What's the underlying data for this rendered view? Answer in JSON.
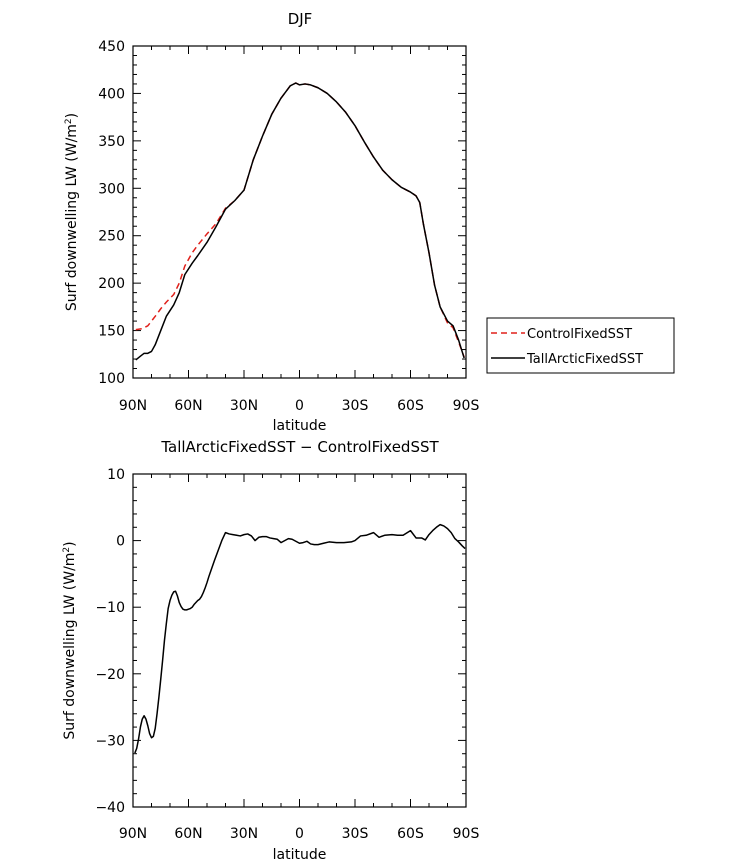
{
  "chart_data": [
    {
      "type": "line",
      "title": "DJF",
      "xlabel": "latitude",
      "ylabel": "Surf downwelling LW (W/m²)",
      "xlim": [
        90,
        -90
      ],
      "ylim": [
        100,
        450
      ],
      "xticks": [
        {
          "value": 90,
          "label": "90N"
        },
        {
          "value": 60,
          "label": "60N"
        },
        {
          "value": 30,
          "label": "30N"
        },
        {
          "value": 0,
          "label": "0"
        },
        {
          "value": -30,
          "label": "30S"
        },
        {
          "value": -60,
          "label": "60S"
        },
        {
          "value": -90,
          "label": "90S"
        }
      ],
      "yticks": [
        100,
        150,
        200,
        250,
        300,
        350,
        400,
        450
      ],
      "legend": "right",
      "series": [
        {
          "name": "ControlFixedSST",
          "color": "#e0201a",
          "dash": "dashed",
          "x": [
            88.5,
            85,
            82,
            78,
            75,
            72,
            68,
            65,
            62,
            58,
            55,
            50,
            45,
            40,
            35,
            30,
            25,
            20,
            15,
            10,
            5,
            2,
            0,
            -3,
            -6,
            -10,
            -15,
            -20,
            -25,
            -30,
            -35,
            -40,
            -45,
            -50,
            -55,
            -60,
            -63,
            -65,
            -67,
            -70,
            -73,
            -76,
            -80,
            -83,
            -86,
            -89
          ],
          "y": [
            151,
            152,
            155,
            165,
            173,
            180,
            188,
            200,
            218,
            232,
            240,
            252,
            263,
            279,
            287,
            298,
            330,
            355,
            378,
            395,
            408,
            411,
            409,
            410,
            409,
            406,
            400,
            391,
            380,
            366,
            349,
            333,
            319,
            309,
            301,
            296,
            292,
            285,
            262,
            232,
            198,
            175,
            158,
            153,
            138,
            122
          ]
        },
        {
          "name": "TallArcticFixedSST",
          "color": "#000000",
          "dash": "solid",
          "x": [
            88.5,
            86,
            84,
            82,
            80,
            78,
            75,
            72,
            68,
            65,
            62,
            58,
            55,
            50,
            45,
            40,
            35,
            30,
            25,
            20,
            15,
            10,
            5,
            2,
            0,
            -3,
            -6,
            -10,
            -15,
            -20,
            -25,
            -30,
            -35,
            -40,
            -45,
            -50,
            -55,
            -60,
            -63,
            -65,
            -67,
            -70,
            -73,
            -76,
            -80,
            -83,
            -86,
            -89
          ],
          "y": [
            119,
            123,
            126,
            126,
            128,
            135,
            150,
            165,
            177,
            190,
            209,
            221,
            229,
            243,
            260,
            278,
            287,
            298,
            330,
            355,
            378,
            395,
            408,
            411,
            409,
            410,
            409,
            406,
            400,
            391,
            380,
            366,
            349,
            333,
            319,
            309,
            301,
            296,
            292,
            285,
            262,
            232,
            198,
            175,
            160,
            155,
            140,
            121
          ]
        }
      ]
    },
    {
      "type": "line",
      "title": "TallArcticFixedSST − ControlFixedSST",
      "xlabel": "latitude",
      "ylabel": "Surf downwelling LW (W/m²)",
      "xlim": [
        90,
        -90
      ],
      "ylim": [
        -40,
        10
      ],
      "xticks": [
        {
          "value": 90,
          "label": "90N"
        },
        {
          "value": 60,
          "label": "60N"
        },
        {
          "value": 30,
          "label": "30N"
        },
        {
          "value": 0,
          "label": "0"
        },
        {
          "value": -30,
          "label": "30S"
        },
        {
          "value": -60,
          "label": "60S"
        },
        {
          "value": -90,
          "label": "90S"
        }
      ],
      "yticks": [
        -40,
        -30,
        -20,
        -10,
        0,
        10
      ],
      "series": [
        {
          "color": "#000000",
          "dash": "solid",
          "x": [
            89,
            88,
            87,
            86,
            85,
            84,
            83,
            82,
            81,
            80,
            79,
            78,
            77,
            76,
            75,
            74,
            73,
            72,
            71,
            70,
            69,
            68,
            67,
            66,
            65,
            64,
            63,
            62,
            61,
            60,
            59,
            58,
            57,
            56,
            55,
            54,
            53,
            52,
            51,
            50,
            49,
            48,
            46,
            44,
            42,
            40,
            38,
            36,
            34,
            32,
            30,
            28,
            26,
            24,
            22,
            20,
            18,
            16,
            14,
            12,
            10,
            8,
            6,
            4,
            2,
            0,
            -2,
            -4,
            -6,
            -8,
            -10,
            -13,
            -16,
            -20,
            -24,
            -28,
            -30,
            -33,
            -36,
            -40,
            -43,
            -46,
            -50,
            -53,
            -56,
            -60,
            -63,
            -66,
            -68,
            -70,
            -72,
            -74,
            -76,
            -78,
            -80,
            -82,
            -84,
            -86,
            -88,
            -89.5
          ],
          "y": [
            -31.9,
            -31.2,
            -29.8,
            -28.0,
            -26.8,
            -26.3,
            -26.8,
            -27.8,
            -29.0,
            -29.6,
            -29.4,
            -28.2,
            -26.0,
            -23.5,
            -20.8,
            -18.0,
            -15.0,
            -12.5,
            -10.2,
            -9.0,
            -8.2,
            -7.7,
            -7.6,
            -8.3,
            -9.3,
            -9.9,
            -10.3,
            -10.4,
            -10.4,
            -10.3,
            -10.2,
            -10.0,
            -9.6,
            -9.3,
            -9.0,
            -8.8,
            -8.4,
            -7.8,
            -7.1,
            -6.3,
            -5.4,
            -4.6,
            -3.0,
            -1.5,
            0.0,
            1.2,
            1.0,
            0.9,
            0.8,
            0.7,
            0.9,
            1.0,
            0.7,
            0.0,
            0.5,
            0.6,
            0.6,
            0.4,
            0.3,
            0.2,
            -0.3,
            0.0,
            0.3,
            0.2,
            -0.1,
            -0.4,
            -0.3,
            -0.1,
            -0.5,
            -0.6,
            -0.6,
            -0.4,
            -0.2,
            -0.3,
            -0.3,
            -0.2,
            0.0,
            0.7,
            0.8,
            1.2,
            0.5,
            0.8,
            0.9,
            0.8,
            0.8,
            1.5,
            0.4,
            0.4,
            0.1,
            0.9,
            1.5,
            2.0,
            2.4,
            2.2,
            1.8,
            1.2,
            0.3,
            -0.2,
            -0.8,
            -1.2
          ]
        }
      ]
    }
  ]
}
